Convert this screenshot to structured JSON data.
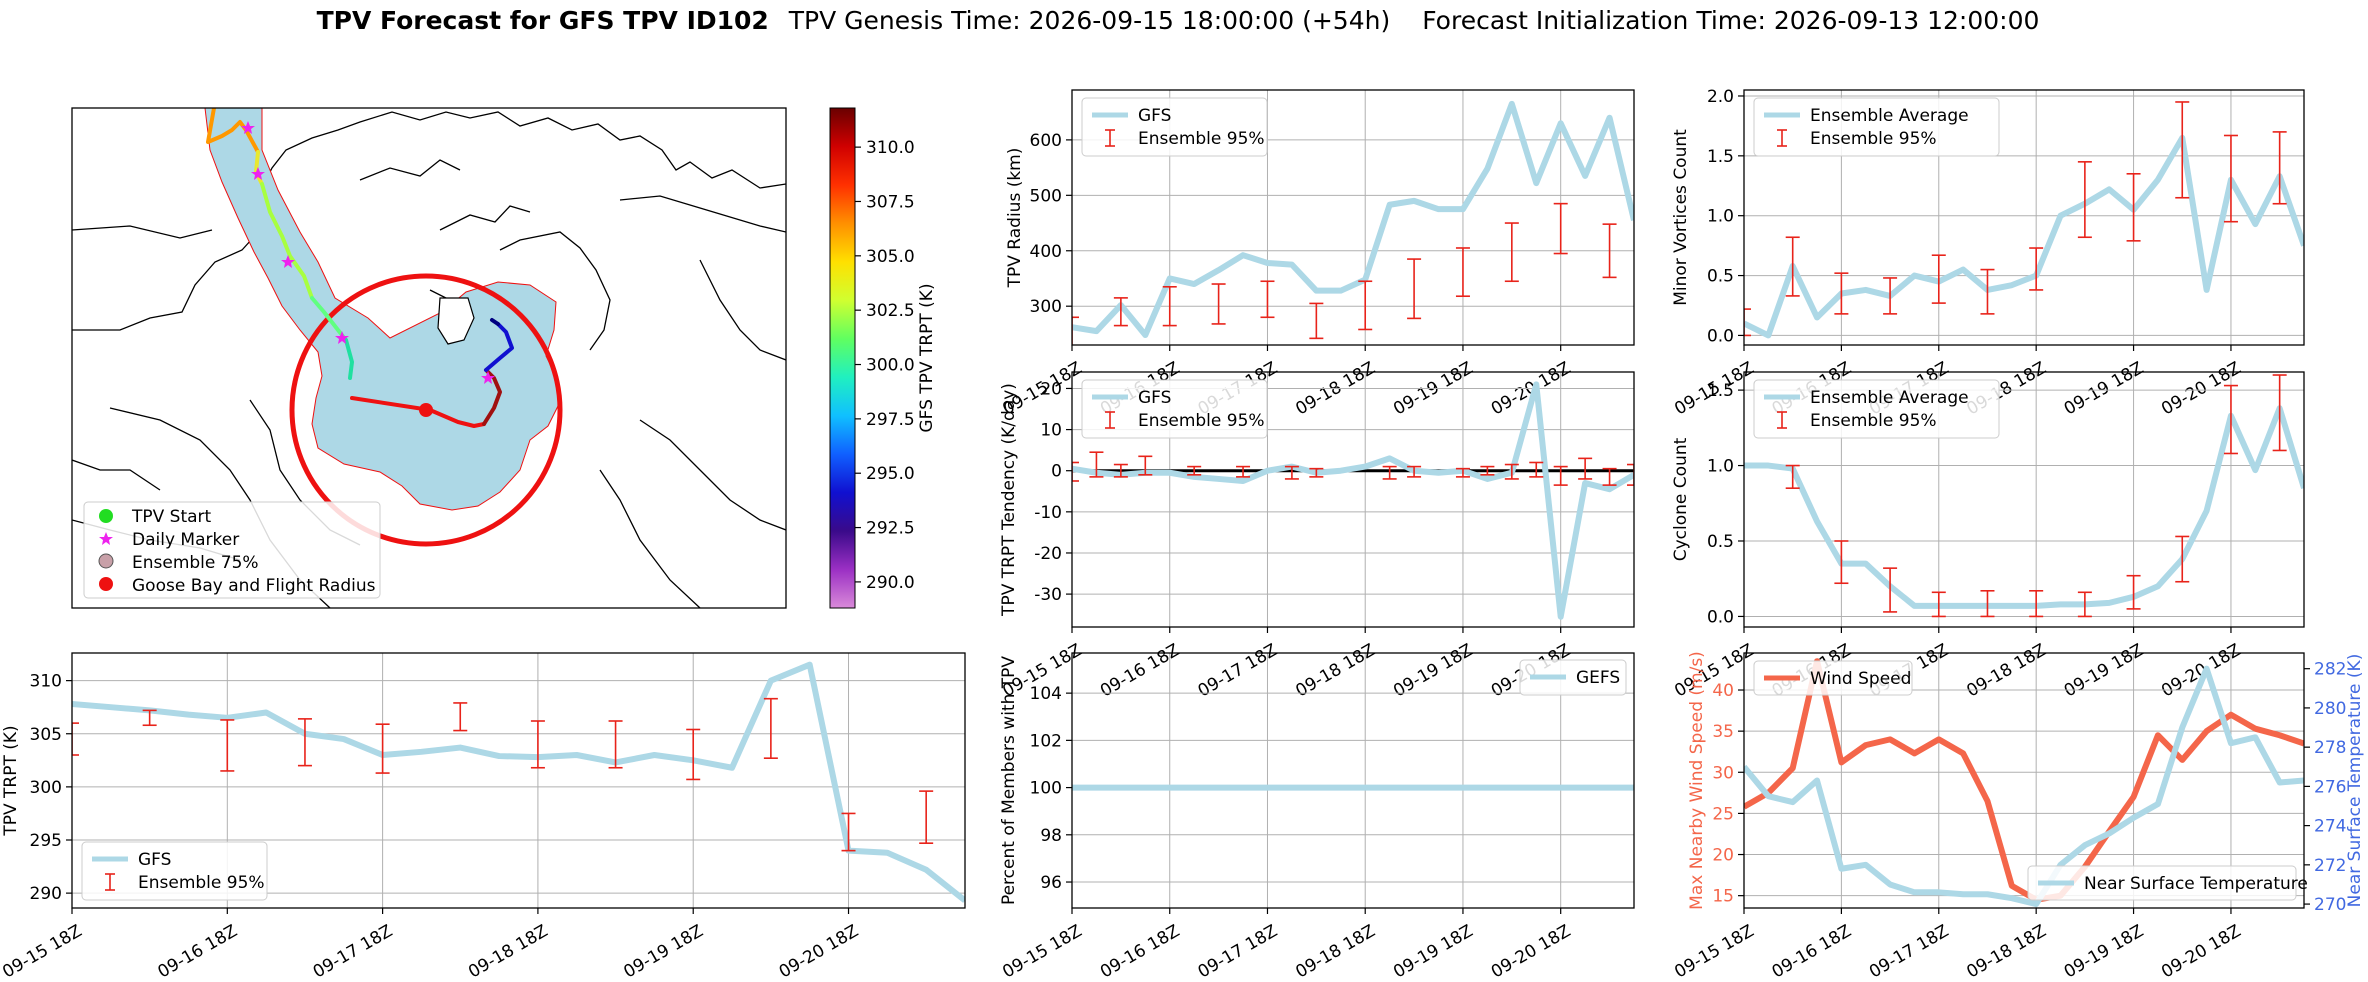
{
  "header": {
    "title": "TPV Forecast for GFS TPV ID102",
    "genesis": "TPV Genesis Time: 2026-09-15 18:00:00 (+54h)",
    "init": "Forecast Initialization Time: 2026-09-13 12:00:00"
  },
  "colors": {
    "gfs": "#add8e6",
    "ensemble": "#e8231a",
    "wind": "#f4664a",
    "temperature_axis": "#4169e1",
    "zero_line": "#000000"
  },
  "time_ticks": [
    "09-15 18Z",
    "09-16 18Z",
    "09-17 18Z",
    "09-18 18Z",
    "09-19 18Z",
    "09-20 18Z"
  ],
  "map": {
    "colorbar": {
      "label": "GFS TPV TRPT (K)",
      "ticks": [
        "310.0",
        "307.5",
        "305.0",
        "302.5",
        "300.0",
        "297.5",
        "295.0",
        "292.5",
        "290.0"
      ],
      "range": [
        288.8,
        311.8
      ],
      "colors": [
        "#d98ad9",
        "#9b30c4",
        "#3a0a8a",
        "#1010d0",
        "#1060ff",
        "#10c0ff",
        "#20f0c0",
        "#60ff60",
        "#d0ff30",
        "#ffe000",
        "#ff9000",
        "#ff3000",
        "#d00000",
        "#6a0000"
      ]
    },
    "legend": [
      "TPV Start",
      "Daily Marker",
      "Ensemble 75%",
      "Goose Bay and Flight Radius"
    ],
    "legend_colors": [
      "#22dd22",
      "#ee22ee",
      "#c8a0a8",
      "#ee1111"
    ],
    "flight_radius_color": "#ee1111",
    "ensemble_fill": "#add8e6"
  },
  "chart_data": [
    {
      "id": "radius",
      "type": "line",
      "ylabel": "TPV Radius (km)",
      "yticks": [
        300,
        400,
        500,
        600
      ],
      "ylim": [
        230,
        690
      ],
      "legend": [
        "GFS",
        "Ensemble 95%"
      ],
      "series": [
        {
          "name": "GFS",
          "values": [
            262,
            255,
            302,
            248,
            350,
            340,
            365,
            392,
            378,
            375,
            328,
            328,
            348,
            483,
            490,
            475,
            475,
            548,
            665,
            522,
            630,
            535,
            640,
            455
          ]
        }
      ],
      "errorbars": [
        [
          0,
          210,
          280
        ],
        [
          2,
          265,
          315
        ],
        [
          4,
          265,
          335
        ],
        [
          6,
          268,
          340
        ],
        [
          8,
          280,
          345
        ],
        [
          10,
          242,
          305
        ],
        [
          12,
          258,
          345
        ],
        [
          14,
          278,
          385
        ],
        [
          16,
          318,
          405
        ],
        [
          18,
          345,
          450
        ],
        [
          20,
          395,
          485
        ],
        [
          22,
          352,
          448
        ]
      ]
    },
    {
      "id": "minor",
      "type": "line",
      "ylabel": "Minor Vortices Count",
      "yticks": [
        0.0,
        0.5,
        1.0,
        1.5,
        2.0
      ],
      "ylim": [
        -0.08,
        2.05
      ],
      "legend": [
        "Ensemble Average",
        "Ensemble 95%"
      ],
      "series": [
        {
          "name": "Ensemble Average",
          "values": [
            0.1,
            0.0,
            0.58,
            0.15,
            0.35,
            0.38,
            0.33,
            0.5,
            0.45,
            0.55,
            0.38,
            0.42,
            0.5,
            1.0,
            1.1,
            1.22,
            1.05,
            1.3,
            1.65,
            0.38,
            1.3,
            0.93,
            1.33,
            0.75
          ]
        }
      ],
      "errorbars": [
        [
          0,
          0.0,
          0.22
        ],
        [
          2,
          0.33,
          0.82
        ],
        [
          4,
          0.18,
          0.52
        ],
        [
          6,
          0.18,
          0.48
        ],
        [
          8,
          0.27,
          0.67
        ],
        [
          10,
          0.18,
          0.55
        ],
        [
          12,
          0.38,
          0.73
        ],
        [
          14,
          0.82,
          1.45
        ],
        [
          16,
          0.79,
          1.35
        ],
        [
          18,
          1.15,
          1.95
        ],
        [
          20,
          0.95,
          1.67
        ],
        [
          22,
          1.1,
          1.7
        ]
      ]
    },
    {
      "id": "tendency",
      "type": "line",
      "ylabel": "TPV TRPT Tendency (K/day)",
      "yticks": [
        -30,
        -20,
        -10,
        0,
        10,
        20
      ],
      "ylim": [
        -38,
        24
      ],
      "legend": [
        "GFS",
        "Ensemble 95%"
      ],
      "series": [
        {
          "name": "GFS",
          "values": [
            0.5,
            -0.5,
            -1.0,
            -0.5,
            -0.5,
            -1.5,
            -2.0,
            -2.5,
            0.0,
            1.0,
            -0.5,
            0.0,
            1.0,
            3.0,
            0.0,
            -0.5,
            0.0,
            -2.0,
            -0.5,
            21.0,
            -35.5,
            -3.0,
            -4.5,
            -1.0
          ]
        }
      ],
      "errorbars": [
        [
          0,
          -2.5,
          2.0
        ],
        [
          1,
          -1.5,
          4.5
        ],
        [
          2,
          -1.5,
          1.5
        ],
        [
          3,
          -1.0,
          3.5
        ],
        [
          5,
          -1.0,
          1.0
        ],
        [
          7,
          -1.5,
          1.0
        ],
        [
          9,
          -2.0,
          1.0
        ],
        [
          10,
          -1.5,
          0.5
        ],
        [
          13,
          -2.0,
          1.0
        ],
        [
          14,
          -1.5,
          1.0
        ],
        [
          16,
          -1.5,
          0.5
        ],
        [
          17,
          -1.0,
          1.0
        ],
        [
          18,
          -2.0,
          1.5
        ],
        [
          19,
          -1.5,
          2.0
        ],
        [
          20,
          -3.5,
          1.0
        ],
        [
          21,
          -2.0,
          3.0
        ],
        [
          22,
          -3.5,
          0.5
        ],
        [
          23,
          -3.5,
          1.5
        ]
      ]
    },
    {
      "id": "cyclone",
      "type": "line",
      "ylabel": "Cyclone Count",
      "yticks": [
        0.0,
        0.5,
        1.0,
        1.5
      ],
      "ylim": [
        -0.07,
        1.62
      ],
      "legend": [
        "Ensemble Average",
        "Ensemble 95%"
      ],
      "series": [
        {
          "name": "Ensemble Average",
          "values": [
            1.0,
            1.0,
            0.98,
            0.63,
            0.35,
            0.35,
            0.2,
            0.07,
            0.07,
            0.07,
            0.07,
            0.07,
            0.07,
            0.08,
            0.08,
            0.09,
            0.13,
            0.2,
            0.38,
            0.7,
            1.33,
            0.97,
            1.38,
            0.85
          ]
        }
      ],
      "errorbars": [
        [
          2,
          0.85,
          1.0
        ],
        [
          4,
          0.22,
          0.5
        ],
        [
          6,
          0.03,
          0.32
        ],
        [
          8,
          0.0,
          0.16
        ],
        [
          10,
          0.0,
          0.17
        ],
        [
          12,
          0.0,
          0.17
        ],
        [
          14,
          0.0,
          0.16
        ],
        [
          16,
          0.05,
          0.27
        ],
        [
          18,
          0.23,
          0.53
        ],
        [
          20,
          1.08,
          1.53
        ],
        [
          22,
          1.1,
          1.6
        ]
      ]
    },
    {
      "id": "trpt",
      "type": "line",
      "ylabel": "TPV TRPT (K)",
      "yticks": [
        290,
        295,
        300,
        305,
        310
      ],
      "ylim": [
        288.6,
        312.6
      ],
      "legend": [
        "GFS",
        "Ensemble 95%"
      ],
      "series": [
        {
          "name": "GFS",
          "values": [
            307.8,
            307.5,
            307.2,
            306.8,
            306.5,
            307.0,
            305.0,
            304.5,
            303.0,
            303.3,
            303.7,
            302.9,
            302.8,
            303.0,
            302.3,
            303.0,
            302.5,
            301.8,
            310.0,
            311.5,
            294.0,
            293.8,
            292.2,
            289.3
          ]
        }
      ],
      "errorbars": [
        [
          0,
          303.0,
          306.0
        ],
        [
          2,
          305.8,
          307.2
        ],
        [
          4,
          301.5,
          306.3
        ],
        [
          6,
          302.0,
          306.4
        ],
        [
          8,
          301.3,
          305.9
        ],
        [
          10,
          305.3,
          307.9
        ],
        [
          12,
          301.8,
          306.2
        ],
        [
          14,
          301.8,
          306.2
        ],
        [
          16,
          300.7,
          305.4
        ],
        [
          18,
          302.7,
          308.3
        ],
        [
          20,
          294.0,
          297.5
        ],
        [
          22,
          294.7,
          299.6
        ]
      ]
    },
    {
      "id": "percent",
      "type": "line",
      "ylabel": "Percent of Members with TPV",
      "yticks": [
        96,
        98,
        100,
        102,
        104
      ],
      "ylim": [
        94.9,
        105.7
      ],
      "legend": [
        "GEFS"
      ],
      "series": [
        {
          "name": "GEFS",
          "values": [
            100,
            100,
            100,
            100,
            100,
            100,
            100,
            100,
            100,
            100,
            100,
            100,
            100,
            100,
            100,
            100,
            100,
            100,
            100,
            100,
            100,
            100,
            100,
            100
          ]
        }
      ]
    },
    {
      "id": "wind",
      "type": "line",
      "ylabel": "Max Nearby Wind Speed (m/s)",
      "yticks": [
        15,
        20,
        25,
        30,
        35,
        40
      ],
      "ylim": [
        13.5,
        44.5
      ],
      "legend": [
        "Wind Speed"
      ],
      "series": [
        {
          "name": "Wind Speed",
          "values": [
            25.8,
            27.5,
            30.5,
            43.5,
            31.2,
            33.3,
            34.0,
            32.3,
            34.0,
            32.3,
            26.5,
            16.2,
            14.5,
            15.0,
            18.5,
            22.8,
            27.0,
            34.5,
            31.5,
            35.0,
            37.0,
            35.3,
            34.5,
            33.5
          ]
        }
      ]
    },
    {
      "id": "temp",
      "type": "line",
      "ylabel": "Near Surface Temperature (K)",
      "yticks": [
        270,
        272,
        274,
        276,
        278,
        280,
        282
      ],
      "ylim": [
        269.8,
        282.8
      ],
      "legend": [
        "Near Surface Temperature"
      ],
      "series": [
        {
          "name": "Near Surface Temperature",
          "values": [
            277.0,
            275.5,
            275.2,
            276.3,
            271.8,
            272.0,
            271.0,
            270.6,
            270.6,
            270.5,
            270.5,
            270.3,
            270.0,
            272.0,
            273.0,
            273.6,
            274.4,
            275.1,
            279.0,
            282.0,
            278.2,
            278.5,
            276.2,
            276.3
          ]
        }
      ]
    }
  ]
}
